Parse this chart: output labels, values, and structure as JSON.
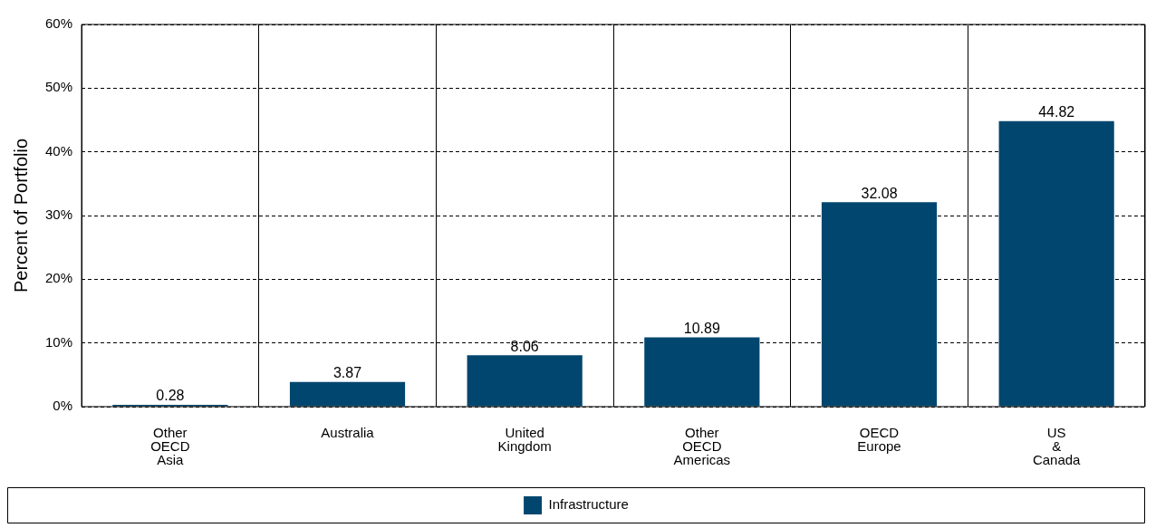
{
  "chart_data": {
    "type": "bar",
    "ylabel": "Percent of Portfolio",
    "categories": [
      "Other OECD Asia",
      "Australia",
      "United Kingdom",
      "Other OECD Americas",
      "OECD Europe",
      "US & Canada"
    ],
    "series": [
      {
        "name": "Infrastructure",
        "color": "#00466e",
        "values": [
          0.28,
          3.87,
          8.06,
          10.89,
          32.08,
          44.82
        ]
      }
    ],
    "ylim": [
      0,
      60
    ],
    "yticks": [
      {
        "value": 0,
        "label": "0%"
      },
      {
        "value": 10,
        "label": "10%"
      },
      {
        "value": 20,
        "label": "20%"
      },
      {
        "value": 30,
        "label": "30%"
      },
      {
        "value": 40,
        "label": "40%"
      },
      {
        "value": 50,
        "label": "50%"
      },
      {
        "value": 60,
        "label": "60%"
      }
    ],
    "grid": true,
    "data_labels": true,
    "legend": "bottom"
  }
}
